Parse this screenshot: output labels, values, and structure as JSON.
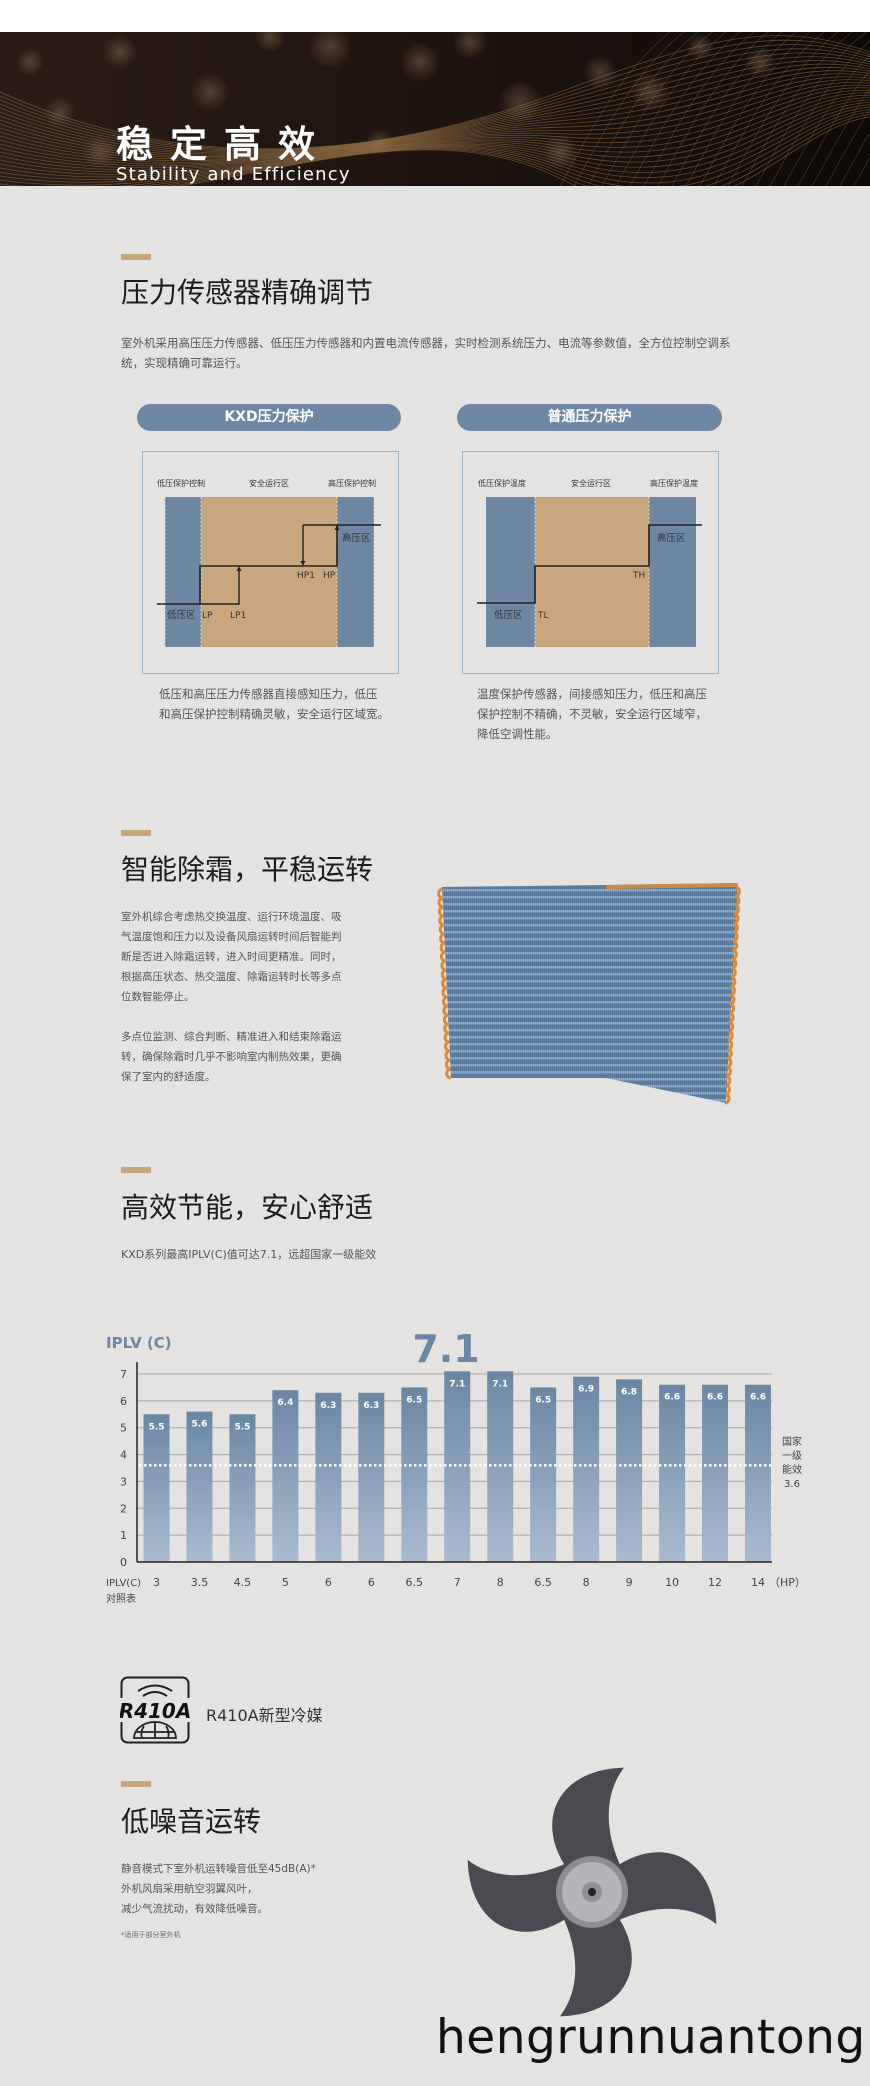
{
  "banner": {
    "title": "稳定高效",
    "subtitle": "Stability and Efficiency"
  },
  "pressure": {
    "title": "压力传感器精确调节",
    "para": [
      "室外机采用高压压力传感器、低压压力传感器和内置电流传感器，实时检测系统压力、电流等参数值，全方位控制空调系",
      "统，实现精确可靠运行。"
    ],
    "kxd": {
      "pill": "KXD压力保护",
      "left_label": "低压保护控制",
      "mid_label": "安全运行区",
      "right_label": "高压保护控制",
      "low_zone": "低压区",
      "high_zone": "高压区",
      "lp": "LP",
      "lp1": "LP1",
      "hp1": "HP1",
      "hp": "HP",
      "caption": [
        "低压和高压压力传感器直接感知压力，低压",
        "和高压保护控制精确灵敏，安全运行区域宽。"
      ]
    },
    "normal": {
      "pill": "普通压力保护",
      "left_label": "低压保护温度",
      "mid_label": "安全运行区",
      "right_label": "高压保护温度",
      "low_zone": "低压区",
      "high_zone": "高压区",
      "tl": "TL",
      "th": "TH",
      "caption": [
        "温度保护传感器，间接感知压力，低压和高压",
        "保护控制不精确，不灵敏，安全运行区域窄，",
        "降低空调性能。"
      ]
    },
    "colors": {
      "blue": "#6e88a4",
      "tan": "#c8a77e"
    }
  },
  "defrost": {
    "title": "智能除霜，平稳运转",
    "para1": [
      "室外机综合考虑热交换温度、运行环境温度、吸",
      "气温度饱和压力以及设备风扇运转时间后智能判",
      "断是否进入除霜运转，进入时间更精准。同时，",
      "根据高压状态、热交温度、除霜运转时长等多点",
      "位数智能停止。"
    ],
    "para2": [
      "多点位监测、综合判断、精准进入和结束除霜运",
      "转，确保除霜时几乎不影响室内制热效果，更确",
      "保了室内的舒适度。"
    ]
  },
  "efficiency": {
    "title": "高效节能，安心舒适",
    "subtitle": "KXD系列最高IPLV(C)值可达7.1，远超国家一级能效"
  },
  "chart_data": {
    "type": "bar",
    "title": "IPLV (C)",
    "highlight": "7.1",
    "xlabel": "IPLV(C)对照表",
    "x_unit": "（HP）",
    "categories": [
      "3",
      "3.5",
      "4.5",
      "5",
      "6",
      "6",
      "6.5",
      "7",
      "8",
      "6.5",
      "8",
      "9",
      "10",
      "12",
      "14"
    ],
    "values": [
      5.5,
      5.6,
      5.5,
      6.4,
      6.3,
      6.3,
      6.5,
      7.1,
      7.1,
      6.5,
      6.9,
      6.8,
      6.6,
      6.6,
      6.6
    ],
    "value_labels": [
      "5.5",
      "5.6",
      "5.5",
      "6.4",
      "6.3",
      "6.3",
      "6.5",
      "7.1",
      "7.1",
      "6.5",
      "6.9",
      "6.8",
      "6.6",
      "6.6",
      "6.6"
    ],
    "yticks": [
      "0",
      "1",
      "2",
      "3",
      "4",
      "5",
      "6",
      "7"
    ],
    "ylim": [
      0,
      7
    ],
    "grid": true,
    "reference": {
      "value": 3.6,
      "label_lines": [
        "国家",
        "一级",
        "能效",
        "3.6"
      ],
      "style": "dotted white"
    },
    "bar_color_top": "#6b86a4",
    "bar_color_bottom": "#aabbd0"
  },
  "refrigerant": {
    "logo": "R410A",
    "label": "R410A新型冷媒"
  },
  "noise": {
    "title": "低噪音运转",
    "para": [
      "静音模式下室外机运转噪音低至45dB(A)*",
      "外机风扇采用航空羽翼风叶，",
      "减少气流扰动，有效降低噪音。"
    ],
    "footnote": "*适用于部分室外机"
  },
  "watermark": "hengrunnuantong."
}
